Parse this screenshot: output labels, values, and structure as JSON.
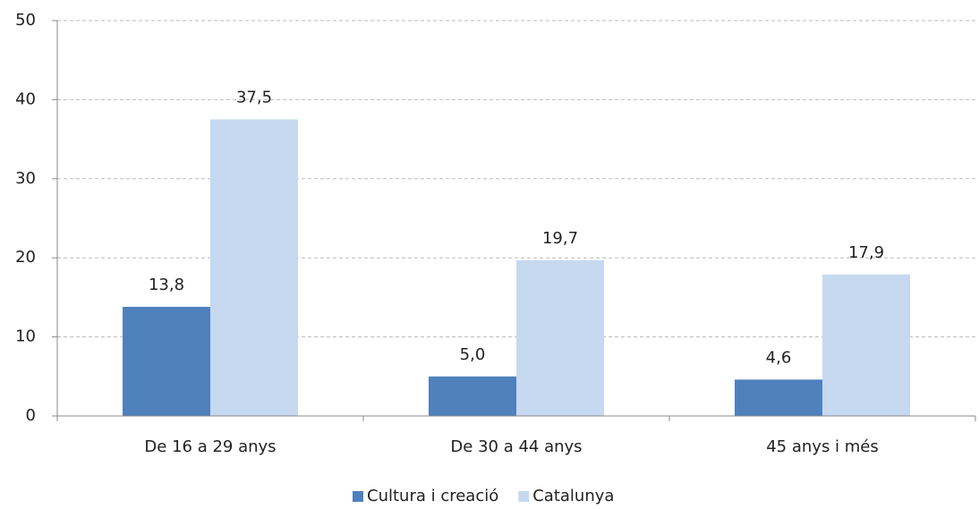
{
  "chart_data": {
    "type": "bar",
    "categories": [
      "De 16 a 29 anys",
      "De 30 a 44 anys",
      "45 anys i més"
    ],
    "series": [
      {
        "name": "Cultura i creació",
        "color": "#4f81bd",
        "values": [
          13.8,
          5.0,
          4.6
        ],
        "value_labels": [
          "13,8",
          "5,0",
          "4,6"
        ]
      },
      {
        "name": "Catalunya",
        "color": "#c6d9f1",
        "values": [
          37.5,
          19.7,
          17.9
        ],
        "value_labels": [
          "37,5",
          "19,7",
          "17,9"
        ]
      }
    ],
    "ylim": [
      0,
      50
    ],
    "yticks": [
      0,
      10,
      20,
      30,
      40,
      50
    ],
    "grid": true,
    "legend": "bottom"
  }
}
